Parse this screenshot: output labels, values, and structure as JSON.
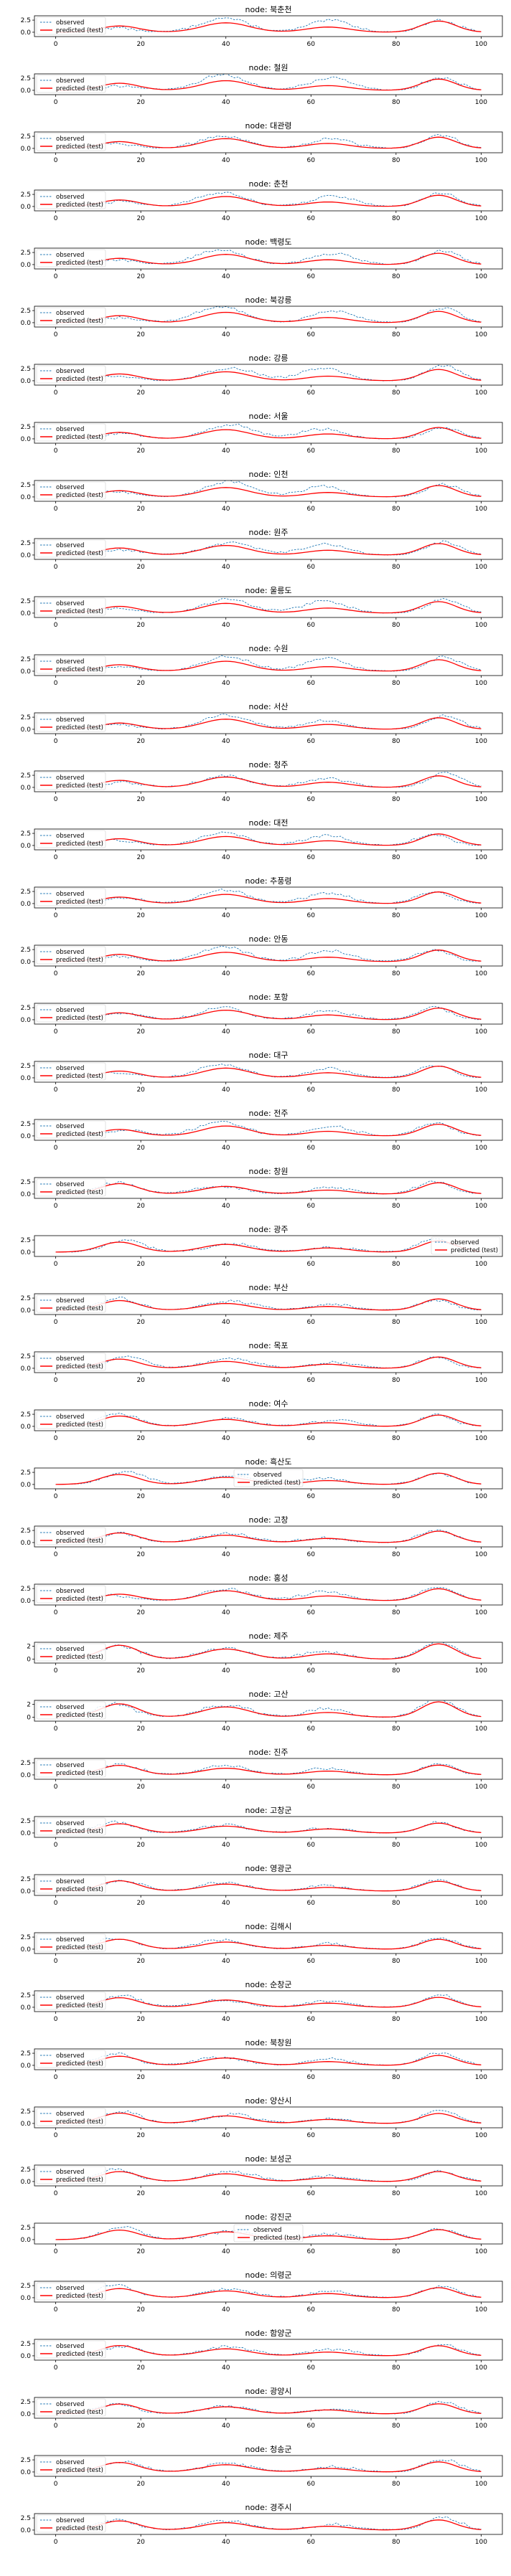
{
  "chart_data": {
    "type": "line",
    "panel_title_prefix": "node: ",
    "nodes": [
      "북춘천",
      "철원",
      "대관령",
      "춘천",
      "백령도",
      "북강릉",
      "강릉",
      "서울",
      "인천",
      "원주",
      "울릉도",
      "수원",
      "서산",
      "청주",
      "대전",
      "추풍령",
      "안동",
      "포항",
      "대구",
      "전주",
      "창원",
      "광주",
      "부산",
      "목포",
      "여수",
      "흑산도",
      "고창",
      "홍성",
      "제주",
      "고산",
      "진주",
      "고창군",
      "영광군",
      "김해시",
      "순창군",
      "북창원",
      "양산시",
      "보성군",
      "강진군",
      "의령군",
      "함양군",
      "광양시",
      "청송군",
      "경주시"
    ],
    "legend": {
      "observed": "observed",
      "predicted": "predicted (test)",
      "placement": "upper-left",
      "overrides": {
        "광주": "upper-right",
        "흑산도": "upper-center",
        "강진군": "upper-center"
      }
    },
    "x_ticks": [
      "0",
      "20",
      "40",
      "60",
      "80",
      "100"
    ],
    "xlim": [
      -5,
      105
    ],
    "y_ticks": [
      "0.0",
      "2.5"
    ],
    "y_ticks_small": [
      "0",
      "2"
    ],
    "ylim": [
      -0.9,
      3.4
    ],
    "ylim_small": [
      -0.6,
      2.6
    ],
    "small_scale_nodes": [
      "제주",
      "고산"
    ],
    "colors": {
      "observed": "#1f77b4",
      "predicted": "#ff0000",
      "axes": "#000000"
    },
    "peaks": [
      {
        "center": 15,
        "width": 4.5
      },
      {
        "center": 40,
        "width": 5.5
      },
      {
        "center": 64,
        "width": 5.0
      },
      {
        "center": 90,
        "width": 4.0
      }
    ],
    "predicted_amplitudes": {
      "default": [
        1.4,
        2.0,
        1.0,
        2.3
      ],
      "southern": [
        2.0,
        1.5,
        0.8,
        2.2
      ]
    },
    "observed_amplitudes": {
      "north": [
        1.0,
        3.0,
        2.3,
        2.8
      ],
      "central": [
        1.2,
        2.7,
        2.0,
        2.6
      ],
      "south": [
        2.3,
        1.8,
        1.2,
        2.4
      ]
    },
    "node_profiles": {
      "north": [
        "북춘천",
        "철원",
        "대관령",
        "춘천",
        "백령도",
        "북강릉",
        "강릉",
        "서울",
        "인천",
        "원주",
        "울릉도",
        "수원"
      ],
      "central": [
        "서산",
        "청주",
        "대전",
        "추풍령",
        "안동",
        "포항",
        "대구",
        "전주",
        "홍성"
      ],
      "south": [
        "창원",
        "광주",
        "부산",
        "목포",
        "여수",
        "흑산도",
        "고창",
        "제주",
        "고산",
        "진주",
        "고창군",
        "영광군",
        "김해시",
        "순창군",
        "북창원",
        "양산시",
        "보성군",
        "강진군",
        "의령군",
        "함양군",
        "광양시",
        "청송군",
        "경주시"
      ]
    },
    "sample_points": 101,
    "x_start": 0
  }
}
